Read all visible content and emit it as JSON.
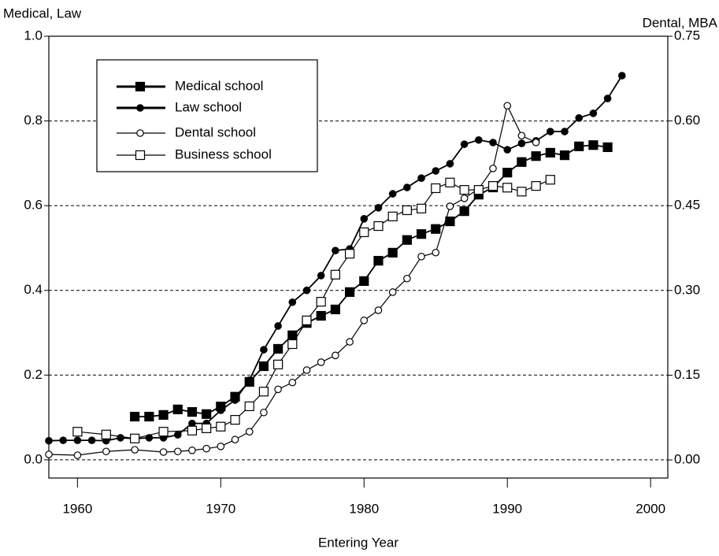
{
  "chart_data": {
    "type": "line",
    "ylabel": "Medical, Law",
    "y2label": "Dental, MBA",
    "xlabel": "Entering Year",
    "xlim": [
      1958,
      2001.2
    ],
    "xticks": [
      1960,
      1970,
      1980,
      1990,
      2000
    ],
    "ylim": [
      -0.043,
      1.0
    ],
    "yticks": [
      {
        "value": 0,
        "label": "0.0"
      },
      0.2,
      0.4,
      0.6,
      0.8,
      {
        "value": 1,
        "label": "1.0"
      }
    ],
    "y2lim": [
      -0.032,
      0.75
    ],
    "y2ticks": [
      {
        "value": 0,
        "label": "0.00"
      },
      {
        "value": 0.15,
        "label": "0.15"
      },
      {
        "value": 0.3,
        "label": "0.30"
      },
      {
        "value": 0.45,
        "label": "0.45"
      },
      {
        "value": 0.6,
        "label": "0.60"
      },
      {
        "value": 0.75,
        "label": "0.75"
      }
    ],
    "grid": true,
    "legend": "upper left",
    "series": [
      {
        "name": "Medical school",
        "color": "#000000",
        "marker": "square",
        "filled": true,
        "x": [
          1964,
          1965,
          1966,
          1967,
          1968,
          1969,
          1970,
          1971,
          1972,
          1973,
          1974,
          1975,
          1976,
          1977,
          1978,
          1979,
          1980,
          1981,
          1982,
          1983,
          1984,
          1985,
          1986,
          1987,
          1988,
          1989,
          1990,
          1991,
          1992,
          1993,
          1994,
          1995,
          1996,
          1997
        ],
        "values": [
          0.102,
          0.102,
          0.106,
          0.119,
          0.113,
          0.108,
          0.126,
          0.149,
          0.184,
          0.221,
          0.262,
          0.294,
          0.323,
          0.34,
          0.355,
          0.396,
          0.422,
          0.47,
          0.489,
          0.519,
          0.533,
          0.545,
          0.563,
          0.587,
          0.626,
          0.643,
          0.678,
          0.703,
          0.717,
          0.725,
          0.719,
          0.74,
          0.743,
          0.738
        ]
      },
      {
        "name": "Law school",
        "color": "#000000",
        "marker": "circle",
        "filled": true,
        "x": [
          1958,
          1959,
          1960,
          1961,
          1962,
          1963,
          1964,
          1965,
          1966,
          1967,
          1968,
          1969,
          1970,
          1971,
          1972,
          1973,
          1974,
          1975,
          1976,
          1977,
          1978,
          1979,
          1980,
          1981,
          1982,
          1983,
          1984,
          1985,
          1986,
          1987,
          1988,
          1989,
          1990,
          1991,
          1992,
          1993,
          1994,
          1995,
          1996,
          1997,
          1998
        ],
        "values": [
          0.045,
          0.046,
          0.046,
          0.046,
          0.045,
          0.052,
          0.05,
          0.052,
          0.052,
          0.059,
          0.086,
          0.086,
          0.117,
          0.141,
          0.188,
          0.26,
          0.316,
          0.372,
          0.4,
          0.435,
          0.494,
          0.498,
          0.569,
          0.595,
          0.628,
          0.643,
          0.665,
          0.682,
          0.699,
          0.745,
          0.755,
          0.749,
          0.732,
          0.747,
          0.753,
          0.775,
          0.775,
          0.807,
          0.818,
          0.853,
          0.907
        ]
      },
      {
        "name": "Dental school",
        "color": "#000000",
        "marker": "circle",
        "filled": false,
        "axis": "y2",
        "x": [
          1958,
          1960,
          1962,
          1964,
          1966,
          1967,
          1968,
          1969,
          1970,
          1971,
          1972,
          1973,
          1974,
          1975,
          1976,
          1977,
          1978,
          1979,
          1980,
          1981,
          1982,
          1983,
          1984,
          1985,
          1986,
          1987,
          1988,
          1989,
          1990,
          1991,
          1992
        ],
        "values": [
          0.0098,
          0.0084,
          0.015,
          0.018,
          0.014,
          0.015,
          0.017,
          0.02,
          0.024,
          0.036,
          0.05,
          0.084,
          0.125,
          0.137,
          0.159,
          0.173,
          0.185,
          0.209,
          0.247,
          0.265,
          0.297,
          0.321,
          0.36,
          0.367,
          0.449,
          0.463,
          0.48,
          0.516,
          0.627,
          0.574,
          0.562
        ]
      },
      {
        "name": "Business school",
        "color": "#000000",
        "marker": "square",
        "filled": false,
        "axis": "y2",
        "x": [
          1960,
          1962,
          1964,
          1966,
          1968,
          1969,
          1970,
          1971,
          1972,
          1973,
          1974,
          1975,
          1976,
          1977,
          1978,
          1979,
          1980,
          1981,
          1982,
          1983,
          1984,
          1985,
          1986,
          1987,
          1988,
          1989,
          1990,
          1991,
          1992,
          1993
        ],
        "values": [
          0.05,
          0.045,
          0.038,
          0.05,
          0.052,
          0.056,
          0.059,
          0.071,
          0.095,
          0.121,
          0.169,
          0.205,
          0.247,
          0.28,
          0.328,
          0.365,
          0.403,
          0.414,
          0.431,
          0.442,
          0.445,
          0.481,
          0.491,
          0.478,
          0.478,
          0.485,
          0.482,
          0.475,
          0.485,
          0.496
        ]
      }
    ]
  }
}
